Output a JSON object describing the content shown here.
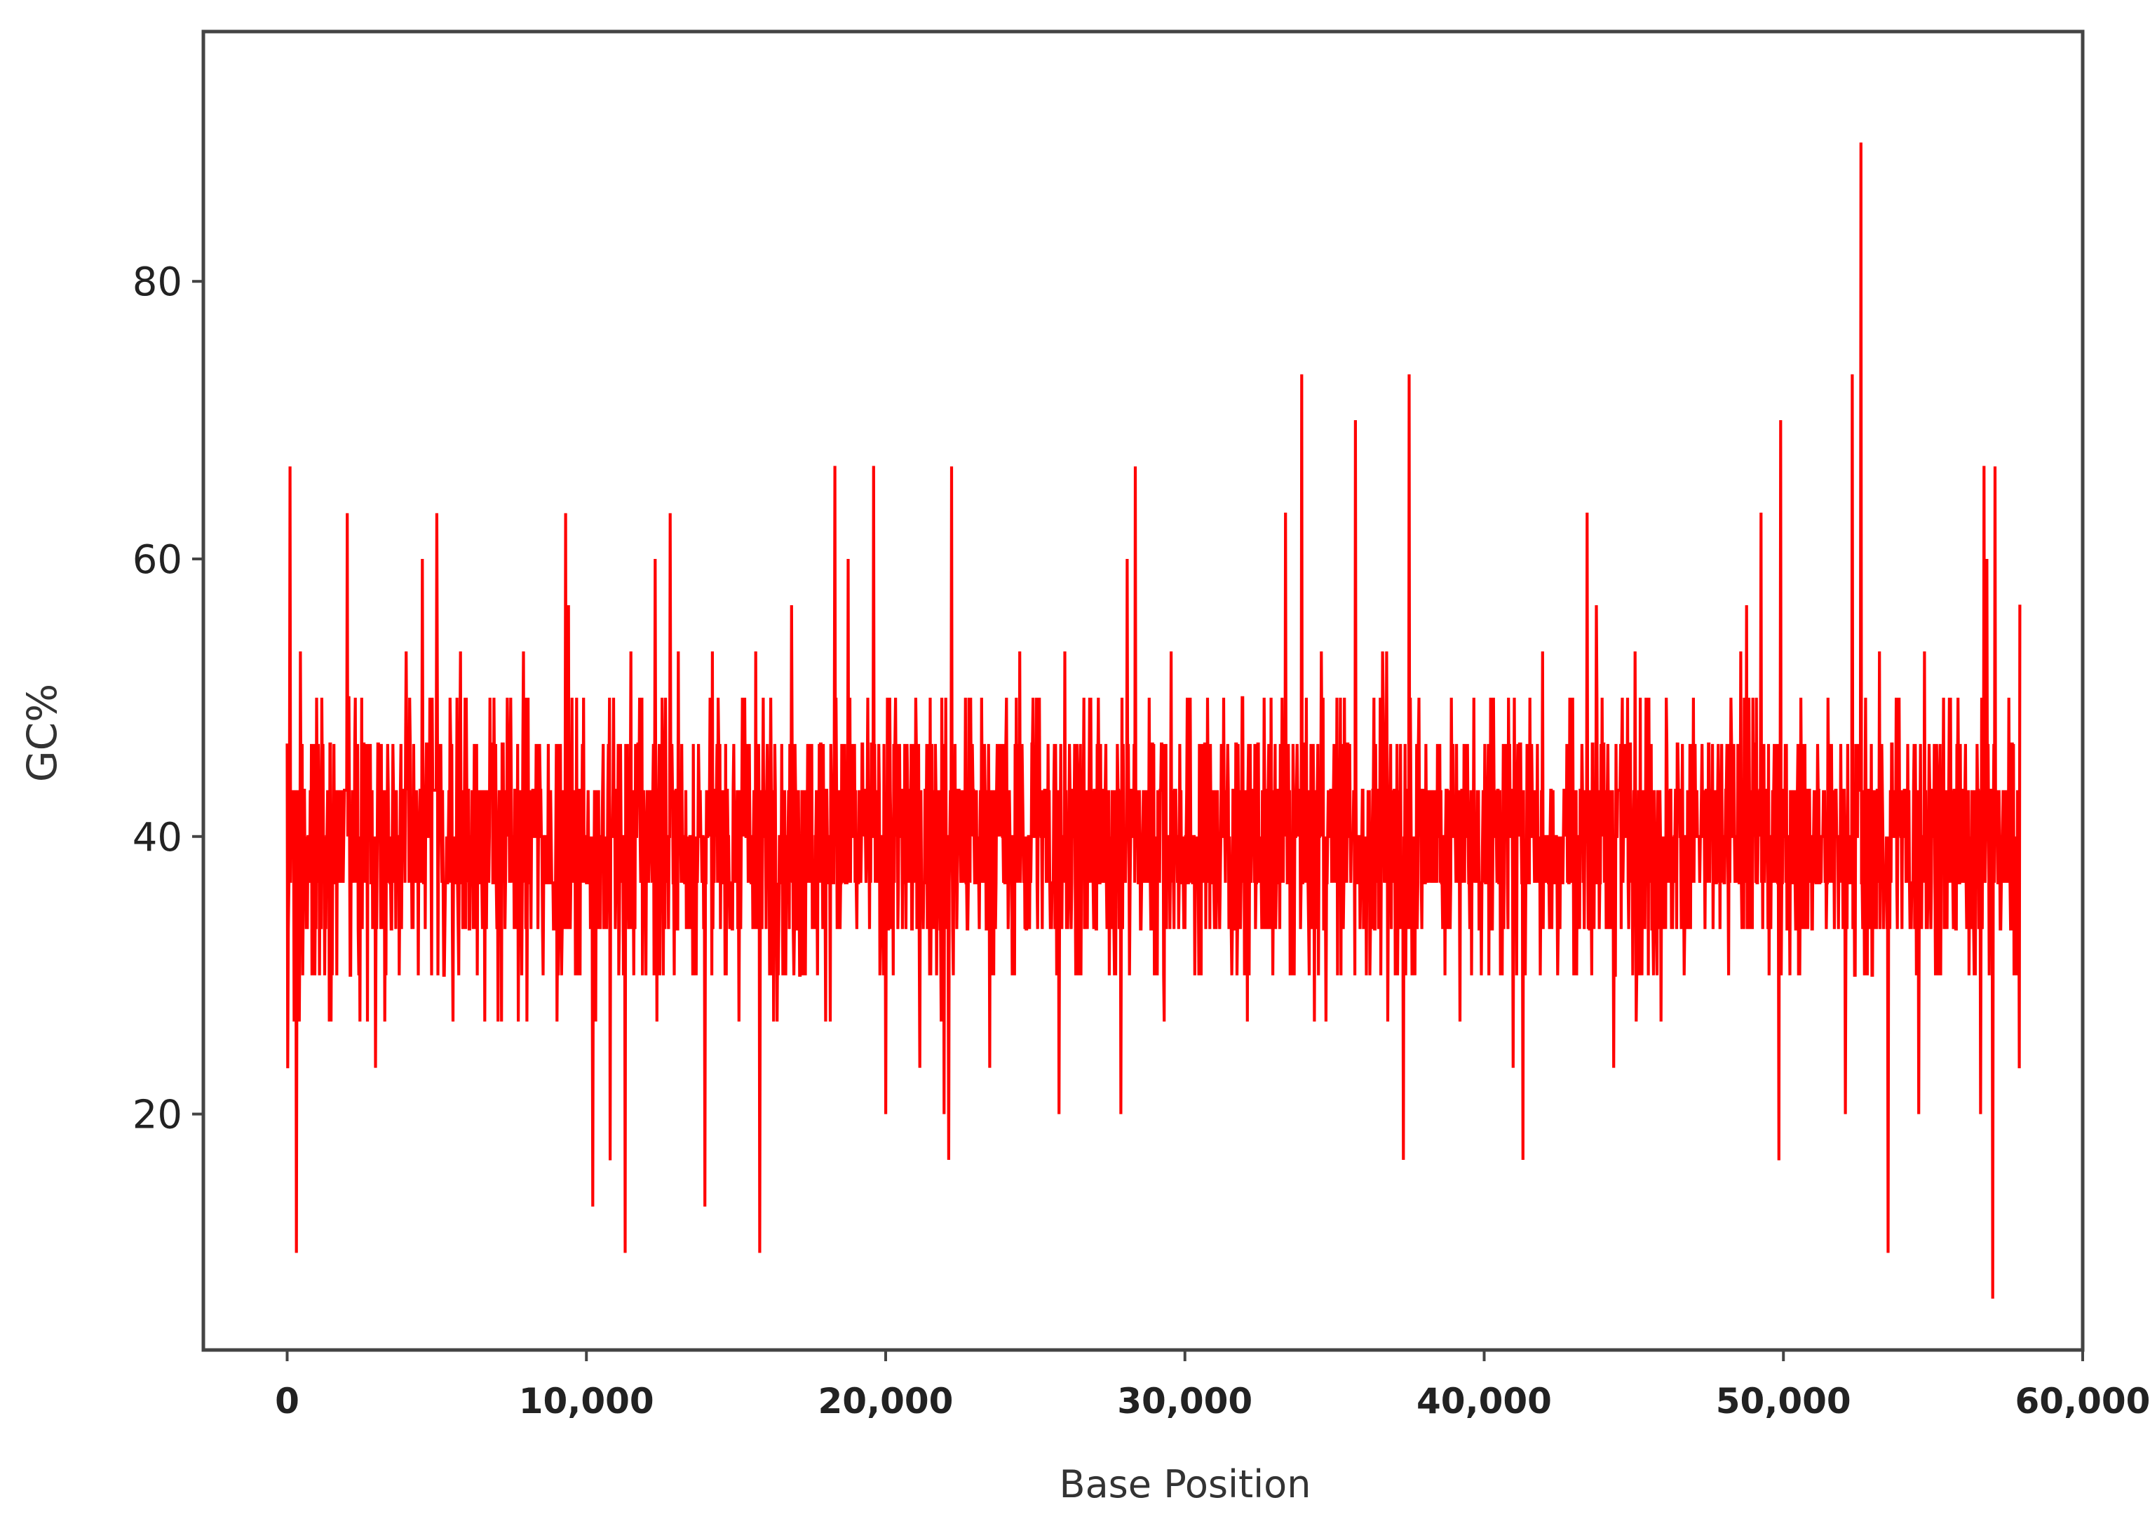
{
  "chart_data": {
    "type": "line",
    "title": "",
    "xlabel": "Base Position",
    "ylabel": "GC%",
    "xlim": [
      -2800,
      60000
    ],
    "ylim": [
      3.0,
      98.0
    ],
    "xticks": [
      0,
      10000,
      20000,
      30000,
      40000,
      50000,
      60000
    ],
    "xtick_labels": [
      "0",
      "10,000",
      "20,000",
      "30,000",
      "40,000",
      "50,000",
      "60,000"
    ],
    "yticks": [
      20,
      40,
      60,
      80
    ],
    "ytick_labels": [
      "20",
      "40",
      "60",
      "80"
    ],
    "grid": false,
    "legend": "none",
    "series": [
      {
        "color": "#ff0000",
        "x_start": 0,
        "x_end": 57900,
        "value_range_typical": [
          23,
          57
        ],
        "mean_approx": 40,
        "notable_points": [
          {
            "x": 300,
            "y": 10
          },
          {
            "x": 2000,
            "y": 63.3
          },
          {
            "x": 5000,
            "y": 63.3
          },
          {
            "x": 9300,
            "y": 63.3
          },
          {
            "x": 11300,
            "y": 10
          },
          {
            "x": 12800,
            "y": 63.3
          },
          {
            "x": 15800,
            "y": 10
          },
          {
            "x": 18300,
            "y": 66.7
          },
          {
            "x": 19600,
            "y": 66.7
          },
          {
            "x": 22100,
            "y": 70
          },
          {
            "x": 22100,
            "y": 16.7
          },
          {
            "x": 33900,
            "y": 73.3
          },
          {
            "x": 35700,
            "y": 70
          },
          {
            "x": 37500,
            "y": 73.3
          },
          {
            "x": 37300,
            "y": 16.7
          },
          {
            "x": 41300,
            "y": 16.7
          },
          {
            "x": 49900,
            "y": 70
          },
          {
            "x": 52300,
            "y": 73.3
          },
          {
            "x": 52600,
            "y": 90
          },
          {
            "x": 53500,
            "y": 10
          },
          {
            "x": 56700,
            "y": 66.7
          },
          {
            "x": 57000,
            "y": 6.7
          }
        ]
      }
    ]
  }
}
